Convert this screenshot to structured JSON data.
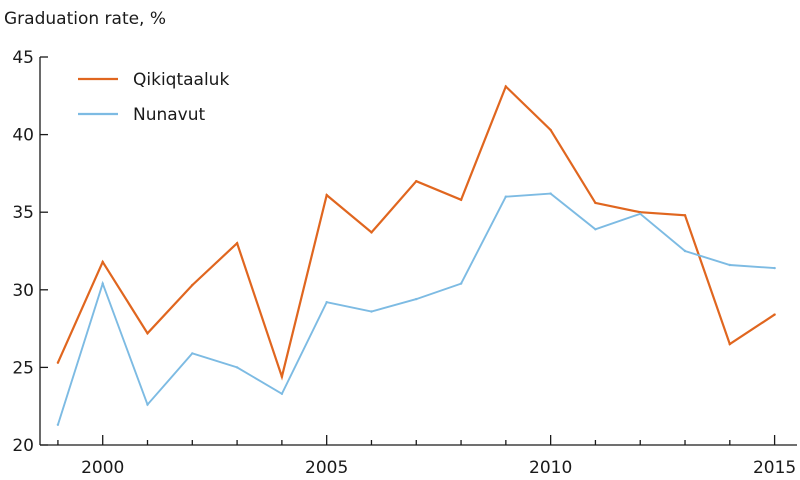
{
  "chart_data": {
    "type": "line",
    "title": "",
    "xlabel": "",
    "ylabel": "Graduation rate, %",
    "xlim": [
      1998.6,
      2015.5
    ],
    "ylim": [
      20,
      45
    ],
    "x_ticks": [
      2000,
      2005,
      2010,
      2015
    ],
    "y_ticks": [
      20,
      25,
      30,
      35,
      40,
      45
    ],
    "x": [
      1999,
      2000,
      2001,
      2002,
      2003,
      2004,
      2005,
      2006,
      2007,
      2008,
      2009,
      2010,
      2011,
      2012,
      2013,
      2014,
      2015
    ],
    "series": [
      {
        "name": "Qikiqtaaluk",
        "color": "#e0661f",
        "values": [
          25.3,
          31.8,
          27.2,
          30.3,
          33.0,
          24.4,
          36.1,
          33.7,
          37.0,
          35.8,
          43.1,
          40.3,
          35.6,
          35.0,
          34.8,
          26.5,
          28.4
        ]
      },
      {
        "name": "Nunavut",
        "color": "#7dbbe3",
        "values": [
          21.3,
          30.4,
          22.6,
          25.9,
          25.0,
          23.3,
          29.2,
          28.6,
          29.4,
          30.4,
          36.0,
          36.2,
          33.9,
          34.9,
          32.5,
          31.6,
          31.4
        ]
      }
    ],
    "legend_position": "top-left",
    "grid": false
  }
}
